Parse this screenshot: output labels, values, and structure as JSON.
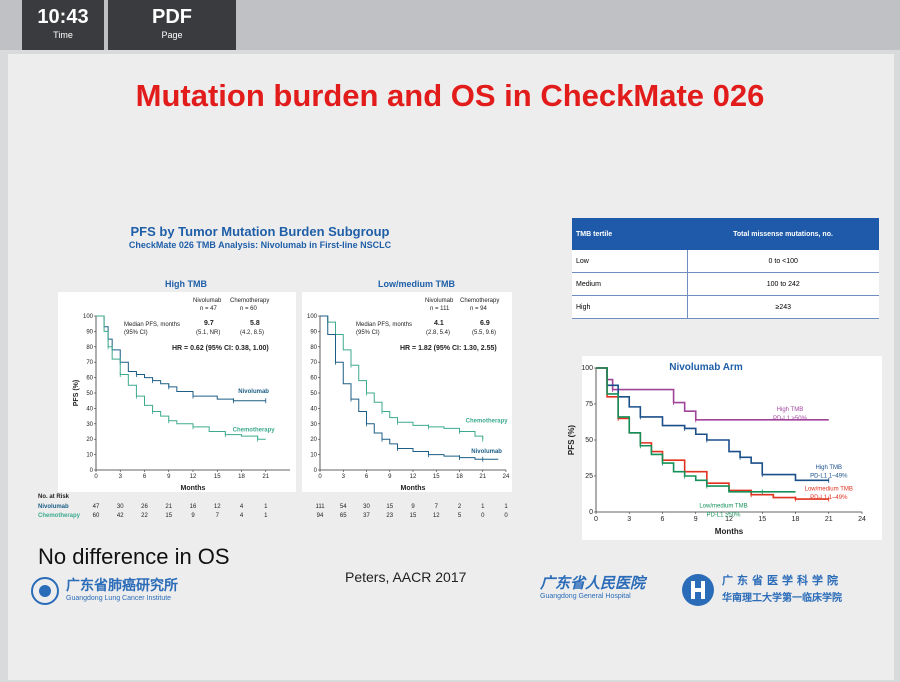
{
  "topbar": {
    "time_value": "10:43",
    "time_label": "Time",
    "page_value": "PDF",
    "page_label": "Page"
  },
  "slide": {
    "title": "Mutation burden and OS in CheckMate 026",
    "subtitle": "PFS by Tumor Mutation Burden Subgroup",
    "subtitle2": "CheckMate 026 TMB Analysis: Nivolumab in First-line NSCLC",
    "footer_left": "No difference in OS",
    "citation": "Peters, AACR 2017",
    "logo_left_text": "广东省肺癌研究所",
    "logo_left_sub": "Guangdong Lung Cancer Institute",
    "logo_right_text": "广东省人民医院",
    "logo_right_sub": "Guangdong General Hospital",
    "logo_right_text2": "广东省医学科学院",
    "logo_right_text3": "华南理工大学第一临床学院"
  },
  "tmb_table": {
    "headers": [
      "TMB tertile",
      "Total missense mutations, no."
    ],
    "rows": [
      [
        "Low",
        "0 to <100"
      ],
      [
        "Medium",
        "100 to 242"
      ],
      [
        "High",
        "≥243"
      ]
    ]
  },
  "colors": {
    "nivolumab": "#1c5e86",
    "chemotherapy": "#3daa8e",
    "high": "#a0449a",
    "high_blue": "#1a4f8a",
    "lowmed_red": "#e0321e",
    "lowmed_green": "#14915a",
    "title_red": "#e21b1b"
  },
  "chart_data": [
    {
      "type": "line",
      "title": "High TMB",
      "xlabel": "Months",
      "ylabel": "PFS (%)",
      "xlim": [
        0,
        24
      ],
      "ylim": [
        0,
        100
      ],
      "xticks": [
        0,
        3,
        6,
        9,
        12,
        15,
        18,
        21
      ],
      "yticks": [
        0,
        10,
        20,
        30,
        40,
        50,
        60,
        70,
        80,
        90,
        100
      ],
      "legend": {
        "col1": "Nivolumab",
        "col1_n": "n = 47",
        "col2": "Chemotherapy",
        "col2_n": "n = 60",
        "row_label": "Median PFS, months",
        "row_label2": "(95% CI)",
        "v1": "9.7",
        "v1ci": "(5.1, NR)",
        "v2": "5.8",
        "v2ci": "(4.2, 8.5)",
        "hr": "HR = 0.62 (95% CI: 0.38, 1.00)"
      },
      "series": [
        {
          "name": "Nivolumab",
          "x": [
            0,
            1,
            1.5,
            2,
            3,
            4,
            5,
            6,
            7,
            8,
            9,
            10,
            12,
            15,
            17,
            19,
            21
          ],
          "y": [
            100,
            93,
            85,
            78,
            70,
            64,
            62,
            60,
            58,
            56,
            54,
            51,
            48,
            46,
            45,
            45,
            45
          ]
        },
        {
          "name": "Chemotherapy",
          "x": [
            0,
            1,
            1.5,
            2,
            3,
            4,
            5,
            6,
            7,
            8,
            9,
            10,
            12,
            14,
            16,
            18,
            20,
            21
          ],
          "y": [
            100,
            90,
            80,
            72,
            62,
            55,
            48,
            42,
            38,
            35,
            32,
            30,
            28,
            25,
            23,
            22,
            20,
            20
          ]
        }
      ],
      "at_risk": {
        "label": "No. at Risk",
        "rows": [
          {
            "name": "Nivolumab",
            "values": [
              "47",
              "30",
              "26",
              "21",
              "16",
              "12",
              "4",
              "1"
            ]
          },
          {
            "name": "Chemotherapy",
            "values": [
              "60",
              "42",
              "22",
              "15",
              "9",
              "7",
              "4",
              "1"
            ]
          }
        ]
      }
    },
    {
      "type": "line",
      "title": "Low/medium TMB",
      "xlabel": "Months",
      "ylabel": "",
      "xlim": [
        0,
        24
      ],
      "ylim": [
        0,
        100
      ],
      "xticks": [
        0,
        3,
        6,
        9,
        12,
        15,
        18,
        21,
        24
      ],
      "yticks": [
        0,
        10,
        20,
        30,
        40,
        50,
        60,
        70,
        80,
        90,
        100
      ],
      "legend": {
        "col1": "Nivolumab",
        "col1_n": "n = 111",
        "col2": "Chemotherapy",
        "col2_n": "n = 94",
        "row_label": "Median PFS, months",
        "row_label2": "(95% CI)",
        "v1": "4.1",
        "v1ci": "(2.8, 5.4)",
        "v2": "6.9",
        "v2ci": "(5.5, 9.6)",
        "hr": "HR = 1.82 (95% CI: 1.30, 2.55)"
      },
      "series": [
        {
          "name": "Chemotherapy",
          "x": [
            0,
            1,
            2,
            3,
            4,
            5,
            6,
            7,
            8,
            9,
            10,
            12,
            14,
            16,
            18,
            20,
            21
          ],
          "y": [
            100,
            96,
            88,
            78,
            68,
            58,
            50,
            44,
            38,
            34,
            31,
            29,
            28,
            27,
            25,
            22,
            20
          ]
        },
        {
          "name": "Nivolumab",
          "x": [
            0,
            1,
            2,
            3,
            4,
            5,
            6,
            7,
            8,
            9,
            10,
            12,
            14,
            16,
            18,
            20,
            21,
            23
          ],
          "y": [
            100,
            88,
            70,
            56,
            46,
            38,
            30,
            24,
            20,
            17,
            14,
            12,
            10,
            9,
            8,
            7,
            7,
            7
          ]
        }
      ],
      "at_risk": {
        "label": "",
        "rows": [
          {
            "name": "",
            "values": [
              "111",
              "54",
              "30",
              "15",
              "9",
              "7",
              "2",
              "1",
              "1"
            ]
          },
          {
            "name": "",
            "values": [
              "94",
              "65",
              "37",
              "23",
              "15",
              "12",
              "5",
              "0",
              "0"
            ]
          }
        ]
      }
    },
    {
      "type": "line",
      "title": "Nivolumab Arm",
      "xlabel": "Months",
      "ylabel": "PFS (%)",
      "xlim": [
        0,
        24
      ],
      "ylim": [
        0,
        100
      ],
      "xticks": [
        0,
        3,
        6,
        9,
        12,
        15,
        18,
        21,
        24
      ],
      "yticks": [
        0,
        25,
        50,
        75,
        100
      ],
      "series": [
        {
          "name": "High TMB, PD-L1 ≥50%",
          "x": [
            0,
            1,
            1.5,
            6,
            7,
            8,
            9,
            21
          ],
          "y": [
            100,
            92,
            85,
            85,
            76,
            70,
            64,
            64
          ]
        },
        {
          "name": "High TMB, PD-L1 1–49%",
          "x": [
            0,
            1,
            2,
            3,
            4,
            6,
            8,
            9,
            10,
            12,
            13,
            14,
            15,
            18,
            21
          ],
          "y": [
            100,
            88,
            80,
            73,
            66,
            60,
            58,
            54,
            50,
            42,
            38,
            34,
            26,
            22,
            22
          ]
        },
        {
          "name": "Low/medium TMB, PD-L1 1–49%",
          "x": [
            0,
            1,
            2,
            3,
            4,
            5,
            6,
            8,
            10,
            12,
            14,
            16,
            18,
            20,
            21
          ],
          "y": [
            100,
            80,
            65,
            55,
            48,
            42,
            36,
            28,
            20,
            15,
            12,
            10,
            9,
            9,
            9
          ]
        },
        {
          "name": "Low/medium TMB, PD-L1 ≥50%",
          "x": [
            0,
            1,
            2,
            3,
            4,
            5,
            6,
            7,
            8,
            9,
            10,
            12,
            15,
            18
          ],
          "y": [
            100,
            82,
            66,
            55,
            46,
            40,
            34,
            28,
            25,
            22,
            18,
            14,
            14,
            14
          ]
        }
      ]
    }
  ]
}
